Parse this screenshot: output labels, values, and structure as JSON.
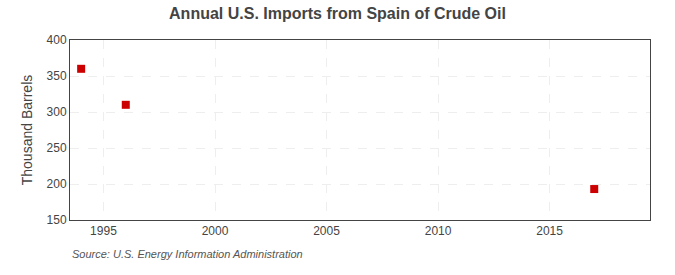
{
  "chart_data": {
    "type": "scatter",
    "title": "Annual U.S. Imports from Spain of Crude Oil",
    "ylabel": "Thousand Barrels",
    "x": [
      1994,
      1996,
      2017
    ],
    "values": [
      360,
      310,
      193
    ],
    "color": "#cc0000",
    "marker": "square",
    "xlim": [
      1993.5,
      2019.5
    ],
    "ylim": [
      150,
      400
    ],
    "xticks": [
      1995,
      2000,
      2005,
      2010,
      2015
    ],
    "yticks": [
      150,
      200,
      250,
      300,
      350,
      400
    ],
    "grid": true,
    "annotations": [
      "Source: U.S. Energy Information Administration"
    ]
  }
}
